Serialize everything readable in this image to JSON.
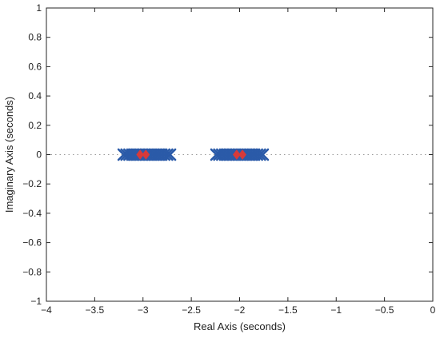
{
  "chart_data": {
    "type": "scatter",
    "title": "",
    "xlabel": "Real Axis (seconds)",
    "ylabel": "Imaginary Axis (seconds)",
    "xlim": [
      -4,
      0
    ],
    "ylim": [
      -1,
      1
    ],
    "xticks": [
      -4,
      -3.5,
      -3,
      -2.5,
      -2,
      -1.5,
      -1,
      -0.5,
      0
    ],
    "xtick_labels": [
      "−4",
      "−3.5",
      "−3",
      "−2.5",
      "−2",
      "−1.5",
      "−1",
      "−0.5",
      "0"
    ],
    "yticks": [
      -1,
      -0.8,
      -0.6,
      -0.4,
      -0.2,
      0,
      0.2,
      0.4,
      0.6,
      0.8,
      1
    ],
    "ytick_labels": [
      "−1",
      "−0.8",
      "−0.6",
      "−0.4",
      "−0.2",
      "0",
      "0.2",
      "0.4",
      "0.6",
      "0.8",
      "1"
    ],
    "grid": false,
    "zero_line": {
      "y": 0,
      "style": "dotted",
      "color": "#9a9a9a"
    },
    "series": [
      {
        "marker": "x",
        "color": "#2a5aa8",
        "points": [
          {
            "x": -3.2,
            "y": 0
          },
          {
            "x": -3.17,
            "y": 0
          },
          {
            "x": -3.14,
            "y": 0
          },
          {
            "x": -3.11,
            "y": 0
          },
          {
            "x": -3.08,
            "y": 0
          },
          {
            "x": -3.05,
            "y": 0
          },
          {
            "x": -3.02,
            "y": 0
          },
          {
            "x": -2.99,
            "y": 0
          },
          {
            "x": -2.96,
            "y": 0
          },
          {
            "x": -2.93,
            "y": 0
          },
          {
            "x": -2.9,
            "y": 0
          },
          {
            "x": -2.87,
            "y": 0
          },
          {
            "x": -2.84,
            "y": 0
          },
          {
            "x": -2.81,
            "y": 0
          },
          {
            "x": -2.78,
            "y": 0
          },
          {
            "x": -2.75,
            "y": 0
          },
          {
            "x": -2.72,
            "y": 0
          },
          {
            "x": -2.24,
            "y": 0
          },
          {
            "x": -2.21,
            "y": 0
          },
          {
            "x": -2.18,
            "y": 0
          },
          {
            "x": -2.15,
            "y": 0
          },
          {
            "x": -2.12,
            "y": 0
          },
          {
            "x": -2.09,
            "y": 0
          },
          {
            "x": -2.06,
            "y": 0
          },
          {
            "x": -2.03,
            "y": 0
          },
          {
            "x": -2.0,
            "y": 0
          },
          {
            "x": -1.97,
            "y": 0
          },
          {
            "x": -1.94,
            "y": 0
          },
          {
            "x": -1.91,
            "y": 0
          },
          {
            "x": -1.88,
            "y": 0
          },
          {
            "x": -1.85,
            "y": 0
          },
          {
            "x": -1.82,
            "y": 0
          },
          {
            "x": -1.79,
            "y": 0
          },
          {
            "x": -1.76,
            "y": 0
          }
        ]
      },
      {
        "marker": "diamond",
        "color": "#d63a3a",
        "points": [
          {
            "x": -3.03,
            "y": 0
          },
          {
            "x": -2.97,
            "y": 0
          },
          {
            "x": -2.03,
            "y": 0
          },
          {
            "x": -1.97,
            "y": 0
          }
        ]
      }
    ]
  }
}
